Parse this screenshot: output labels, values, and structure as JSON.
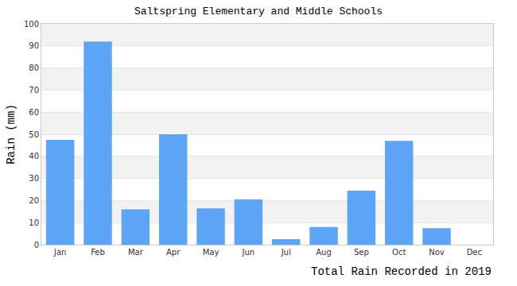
{
  "chart_data": {
    "type": "bar",
    "title": "Saltspring Elementary and Middle Schools",
    "ylabel": "Rain (mm)",
    "xlabel": "Total Rain Recorded in 2019",
    "categories": [
      "Jan",
      "Feb",
      "Mar",
      "Apr",
      "May",
      "Jun",
      "Jul",
      "Aug",
      "Sep",
      "Oct",
      "Nov",
      "Dec"
    ],
    "values": [
      47.5,
      92,
      16,
      50,
      16.5,
      20.5,
      2.5,
      8,
      24.5,
      47,
      7.5,
      0
    ],
    "color": "#5ea6f5",
    "ylim": [
      0,
      100
    ],
    "yticks": [
      0,
      10,
      20,
      30,
      40,
      50,
      60,
      70,
      80,
      90,
      100
    ],
    "grid": true
  }
}
